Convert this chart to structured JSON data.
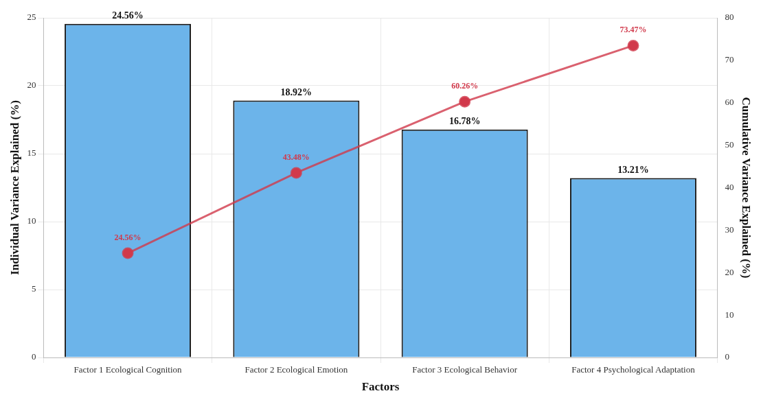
{
  "chart_data": {
    "type": "bar",
    "xlabel": "Factors",
    "ylabel": "Individual Variance Explained (%)",
    "y2label": "Cumulative Variance Explained (%)",
    "categories": [
      "Factor 1 Ecological Cognition",
      "Factor 2 Ecological Emotion",
      "Factor 3 Ecological Behavior",
      "Factor 4 Psychological Adaptation"
    ],
    "series": [
      {
        "color": "#6cb4ea",
        "values": [
          24.56,
          18.92,
          16.78,
          13.21
        ],
        "value_labels": [
          "24.56%",
          "18.92%",
          "16.78%",
          "13.21%"
        ]
      },
      {
        "type": "line",
        "axis": "y2",
        "color": "#d1394b",
        "values": [
          24.56,
          43.48,
          60.26,
          73.47
        ],
        "value_labels": [
          "24.56%",
          "43.48%",
          "60.26%",
          "73.47%"
        ]
      }
    ],
    "ylim": [
      0,
      25
    ],
    "yticks": [
      0,
      5,
      10,
      15,
      20,
      25
    ],
    "y2lim": [
      0,
      80
    ],
    "y2ticks": [
      0,
      10,
      20,
      30,
      40,
      50,
      60,
      70,
      80
    ],
    "grid": true,
    "legend": false,
    "marker": "circle",
    "line_style": "solid"
  }
}
